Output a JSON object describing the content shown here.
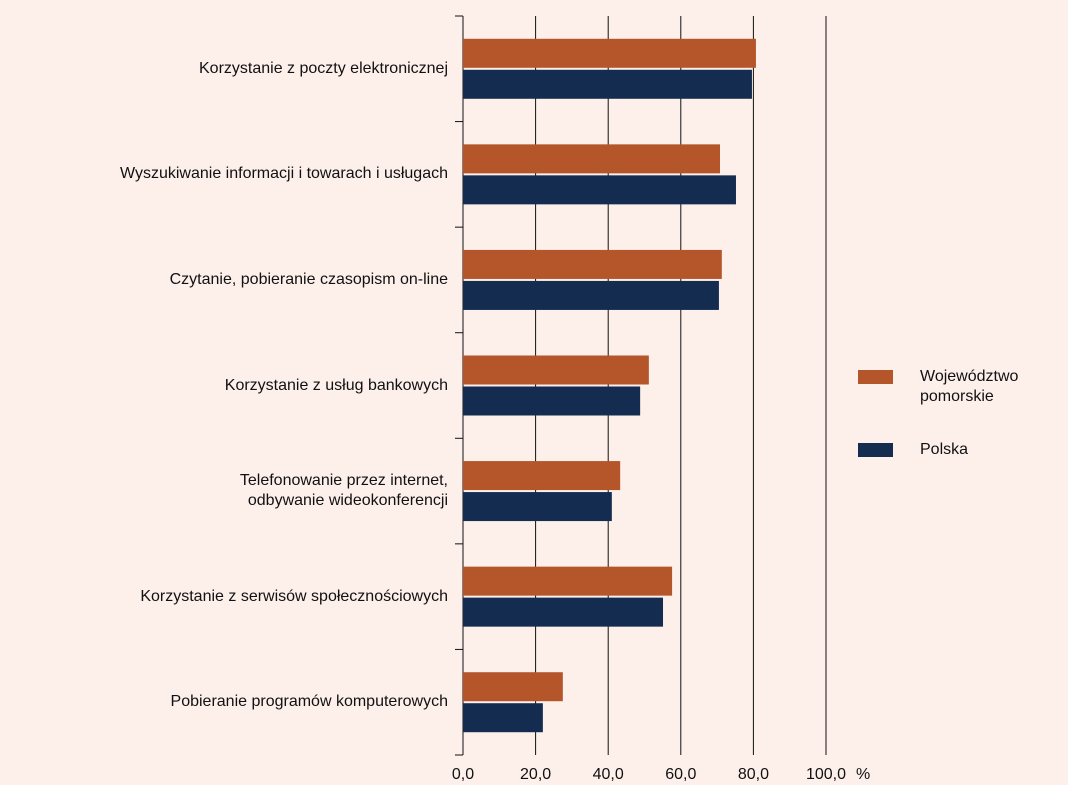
{
  "chart_data": {
    "type": "hbar",
    "categories": [
      "Korzystanie z poczty elektronicznej",
      "Wyszukiwanie informacji i towarach i usługach",
      "Czytanie, pobieranie czasopism on-line",
      "Korzystanie z usług bankowych",
      "Telefonowanie przez internet,\nodbywanie wideokonferencji",
      "Korzystanie z serwisów społecznościowych",
      "Pobieranie programów komputerowych"
    ],
    "series": [
      {
        "name": "Województwo\npomorskie",
        "color": "#b5552a",
        "values": [
          80.7,
          70.8,
          71.3,
          51.2,
          43.3,
          57.6,
          27.5
        ]
      },
      {
        "name": "Polska",
        "color": "#132c4f",
        "values": [
          79.6,
          75.2,
          70.5,
          48.8,
          41.0,
          55.1,
          22.0
        ]
      }
    ],
    "xlim": [
      0,
      100
    ],
    "xticks": [
      {
        "value": 0,
        "label": "0,0"
      },
      {
        "value": 20,
        "label": "20,0"
      },
      {
        "value": 40,
        "label": "40,0"
      },
      {
        "value": 60,
        "label": "60,0"
      },
      {
        "value": 80,
        "label": "80,0"
      },
      {
        "value": 100,
        "label": "100,0"
      }
    ],
    "xlabel": "%",
    "grid": true
  }
}
